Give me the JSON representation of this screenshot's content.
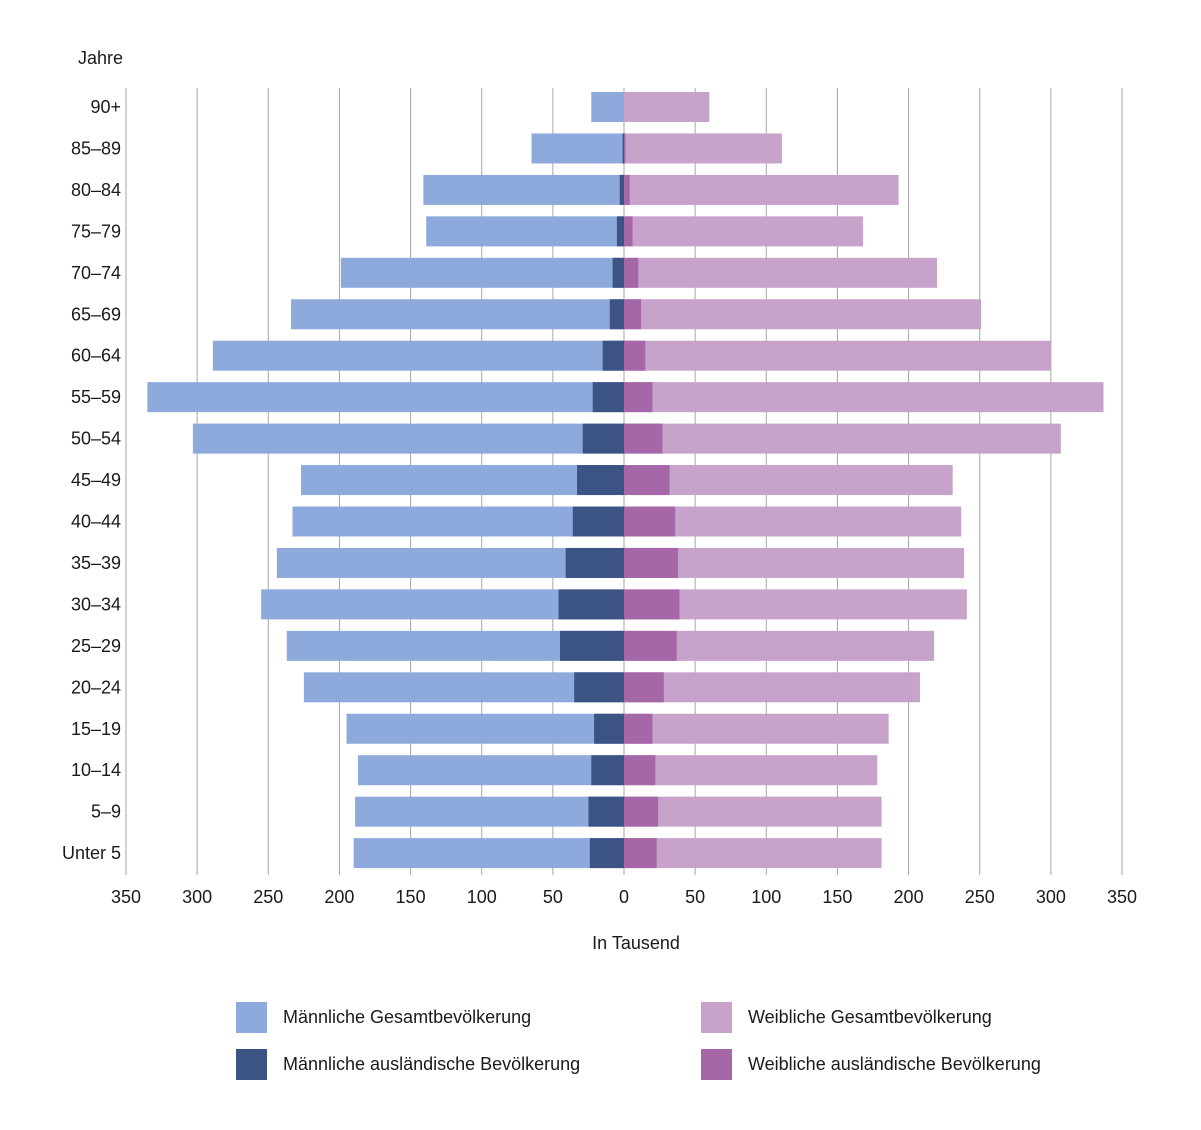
{
  "chart_data": {
    "type": "bar",
    "orientation": "horizontal",
    "subtype": "population-pyramid",
    "y_axis_title": "Jahre",
    "xlabel": "In Tausend",
    "xlim": [
      -350,
      350
    ],
    "x_ticks": [
      350,
      300,
      250,
      200,
      150,
      100,
      50,
      0,
      50,
      100,
      150,
      200,
      250,
      300,
      350
    ],
    "categories": [
      "90+",
      "85–89",
      "80–84",
      "75–79",
      "70–74",
      "65–69",
      "60–64",
      "55–59",
      "50–54",
      "45–49",
      "40–44",
      "35–39",
      "30–34",
      "25–29",
      "20–24",
      "15–19",
      "10–14",
      "5–9",
      "Unter 5"
    ],
    "series": [
      {
        "name": "Männliche Gesamtbevölkerung",
        "side": "left",
        "color": "#8eaadd",
        "values": [
          23,
          65,
          141,
          139,
          199,
          234,
          289,
          335,
          303,
          227,
          233,
          244,
          255,
          237,
          225,
          195,
          187,
          189,
          190
        ]
      },
      {
        "name": "Männliche ausländische Bevölkerung",
        "side": "left",
        "color": "#3b5484",
        "values": [
          0,
          1,
          3,
          5,
          8,
          10,
          15,
          22,
          29,
          33,
          36,
          41,
          46,
          45,
          35,
          21,
          23,
          25,
          24
        ]
      },
      {
        "name": "Weibliche Gesamtbevölkerung",
        "side": "right",
        "color": "#c7a3cb",
        "values": [
          60,
          111,
          193,
          168,
          220,
          251,
          300,
          337,
          307,
          231,
          237,
          239,
          241,
          218,
          208,
          186,
          178,
          181,
          181
        ]
      },
      {
        "name": "Weibliche ausländische Bevölkerung",
        "side": "right",
        "color": "#a567a8",
        "values": [
          0,
          1,
          4,
          6,
          10,
          12,
          15,
          20,
          27,
          32,
          36,
          38,
          39,
          37,
          28,
          20,
          22,
          24,
          23
        ]
      }
    ]
  },
  "legend": {
    "male_total": "Männliche Gesamtbevölkerung",
    "male_foreign": "Männliche ausländische Bevölkerung",
    "female_total": "Weibliche Gesamtbevölkerung",
    "female_foreign": "Weibliche ausländische Bevölkerung"
  },
  "colors": {
    "male_total": "#8eaadd",
    "male_foreign": "#3b5484",
    "female_total": "#c7a3cb",
    "female_foreign": "#a567a8",
    "grid": "#a6a6a6"
  }
}
